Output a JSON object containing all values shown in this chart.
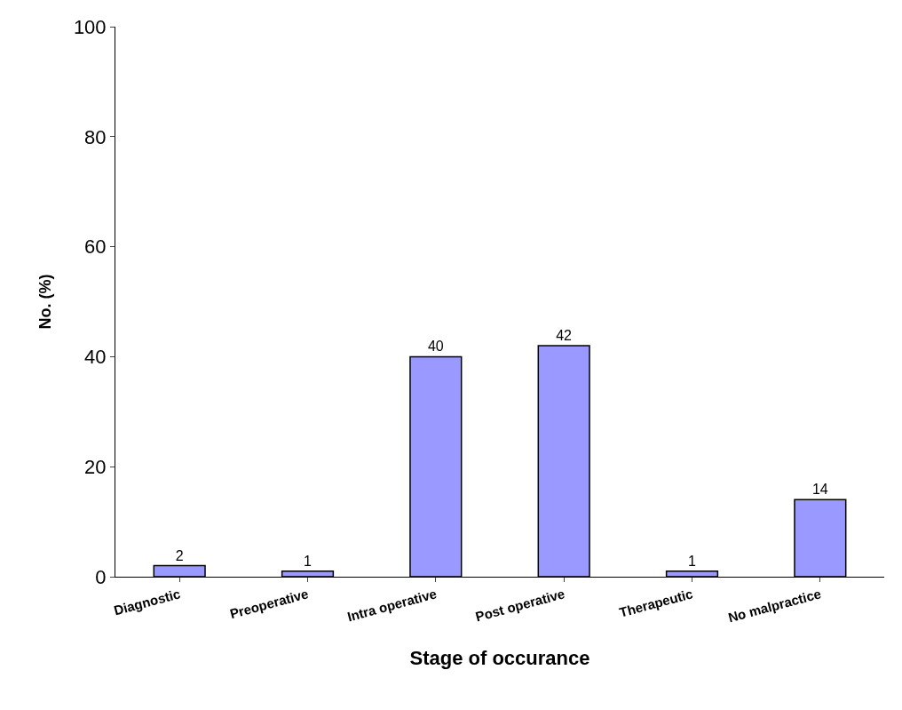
{
  "chart_data": {
    "type": "bar",
    "xlabel": "Stage of occurance",
    "ylabel": "No. (%)",
    "categories": [
      "Diagnostic",
      "Preoperative",
      "Intra operative",
      "Post operative",
      "Therapeutic",
      "No malpractice"
    ],
    "values": [
      2,
      1,
      40,
      42,
      1,
      14
    ],
    "color": "#9999ff",
    "ylim": [
      0,
      100
    ],
    "yticks": [
      0,
      20,
      40,
      60,
      80,
      100
    ],
    "data_labels": true
  }
}
